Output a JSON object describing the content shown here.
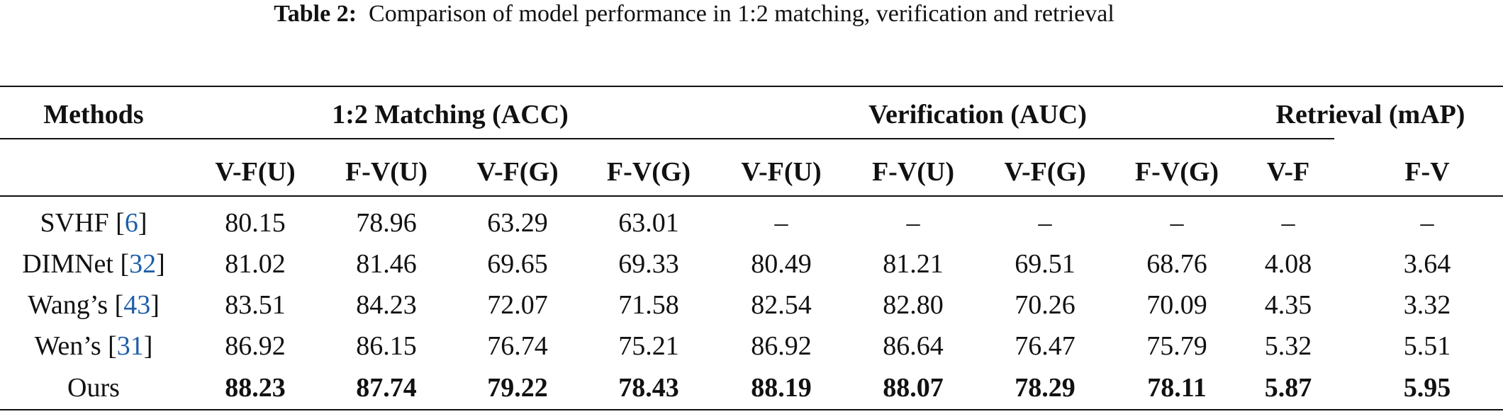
{
  "caption": {
    "label": "Table 2:",
    "text": "Comparison of model performance in 1:2 matching, verification and retrieval"
  },
  "table": {
    "groups": [
      "Methods",
      "1:2 Matching (ACC)",
      "Verification (AUC)",
      "Retrieval (mAP)"
    ],
    "columns": [
      "V-F(U)",
      "F-V(U)",
      "V-F(G)",
      "F-V(G)",
      "V-F(U)",
      "F-V(U)",
      "V-F(G)",
      "F-V(G)",
      "V-F",
      "F-V"
    ],
    "rows": [
      {
        "method": [
          "SVHF [",
          "6",
          "]"
        ],
        "values": [
          "80.15",
          "78.96",
          "63.29",
          "63.01",
          "–",
          "–",
          "–",
          "–",
          "–",
          "–"
        ],
        "bold": false
      },
      {
        "method": [
          "DIMNet [",
          "32",
          "]"
        ],
        "values": [
          "81.02",
          "81.46",
          "69.65",
          "69.33",
          "80.49",
          "81.21",
          "69.51",
          "68.76",
          "4.08",
          "3.64"
        ],
        "bold": false
      },
      {
        "method": [
          "Wang’s [",
          "43",
          "]"
        ],
        "values": [
          "83.51",
          "84.23",
          "72.07",
          "71.58",
          "82.54",
          "82.80",
          "70.26",
          "70.09",
          "4.35",
          "3.32"
        ],
        "bold": false
      },
      {
        "method": [
          "Wen’s [",
          "31",
          "]"
        ],
        "values": [
          "86.92",
          "86.15",
          "76.74",
          "75.21",
          "86.92",
          "86.64",
          "76.47",
          "75.79",
          "5.32",
          "5.51"
        ],
        "bold": false
      },
      {
        "method": [
          "Ours"
        ],
        "values": [
          "88.23",
          "87.74",
          "79.22",
          "78.43",
          "88.19",
          "88.07",
          "78.29",
          "78.11",
          "5.87",
          "5.95"
        ],
        "bold": true
      }
    ]
  }
}
